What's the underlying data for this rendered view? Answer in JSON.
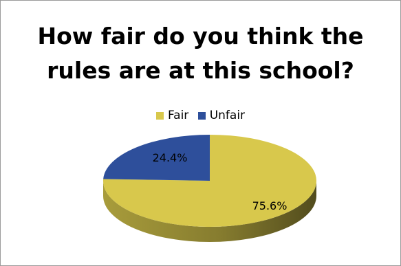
{
  "chart_data": {
    "type": "pie",
    "title": "How fair do you think the rules are at this school?",
    "title_lines": [
      "How fair do you think the",
      "rules are at this school?"
    ],
    "categories": [
      "Fair",
      "Unfair"
    ],
    "values": [
      75.6,
      24.4
    ],
    "value_labels": [
      "75.6%",
      "24.4%"
    ],
    "colors": [
      "#d8c84c",
      "#2e4f9b"
    ],
    "style": "3d",
    "legend_position": "top"
  }
}
